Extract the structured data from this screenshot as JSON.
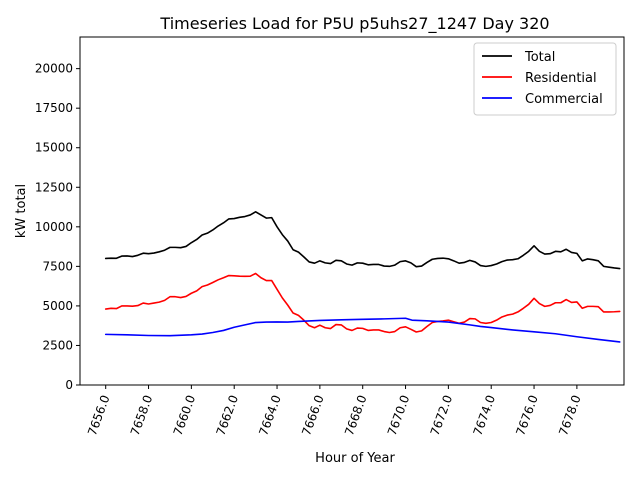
{
  "chart_data": {
    "type": "line",
    "title": "Timeseries Load for P5U p5uhs27_1247  Day 320",
    "xlabel": "Hour of Year",
    "ylabel": "kW total",
    "xlim": [
      7654.8,
      7680.2
    ],
    "ylim": [
      0,
      22000
    ],
    "x_ticks": [
      7656,
      7658,
      7660,
      7662,
      7664,
      7666,
      7668,
      7670,
      7672,
      7674,
      7676,
      7678
    ],
    "x_tick_labels": [
      "7656.0",
      "7658.0",
      "7660.0",
      "7662.0",
      "7664.0",
      "7666.0",
      "7668.0",
      "7670.0",
      "7672.0",
      "7674.0",
      "7676.0",
      "7678.0"
    ],
    "y_ticks": [
      0,
      2500,
      5000,
      7500,
      10000,
      12500,
      15000,
      17500,
      20000
    ],
    "y_tick_labels": [
      "0",
      "2500",
      "5000",
      "7500",
      "10000",
      "12500",
      "15000",
      "17500",
      "20000"
    ],
    "legend_position": "top-right",
    "grid": false,
    "series": [
      {
        "name": "Total",
        "color": "#000000",
        "points": [
          [
            7656.0,
            8000
          ],
          [
            7656.25,
            8020
          ],
          [
            7656.5,
            8010
          ],
          [
            7656.75,
            8150
          ],
          [
            7657.0,
            8160
          ],
          [
            7657.25,
            8120
          ],
          [
            7657.5,
            8200
          ],
          [
            7657.75,
            8330
          ],
          [
            7658.0,
            8300
          ],
          [
            7658.25,
            8340
          ],
          [
            7658.5,
            8420
          ],
          [
            7658.75,
            8520
          ],
          [
            7659.0,
            8700
          ],
          [
            7659.25,
            8700
          ],
          [
            7659.5,
            8680
          ],
          [
            7659.75,
            8760
          ],
          [
            7660.0,
            9000
          ],
          [
            7660.25,
            9200
          ],
          [
            7660.5,
            9480
          ],
          [
            7660.75,
            9600
          ],
          [
            7661.0,
            9800
          ],
          [
            7661.25,
            10050
          ],
          [
            7661.5,
            10250
          ],
          [
            7661.75,
            10500
          ],
          [
            7662.0,
            10520
          ],
          [
            7662.25,
            10600
          ],
          [
            7662.5,
            10650
          ],
          [
            7662.75,
            10750
          ],
          [
            7663.0,
            10950
          ],
          [
            7663.25,
            10750
          ],
          [
            7663.5,
            10550
          ],
          [
            7663.75,
            10580
          ],
          [
            7664.0,
            10000
          ],
          [
            7664.25,
            9500
          ],
          [
            7664.5,
            9100
          ],
          [
            7664.75,
            8550
          ],
          [
            7665.0,
            8400
          ],
          [
            7665.25,
            8100
          ],
          [
            7665.5,
            7780
          ],
          [
            7665.75,
            7700
          ],
          [
            7666.0,
            7850
          ],
          [
            7666.25,
            7720
          ],
          [
            7666.5,
            7680
          ],
          [
            7666.75,
            7880
          ],
          [
            7667.0,
            7850
          ],
          [
            7667.25,
            7650
          ],
          [
            7667.5,
            7580
          ],
          [
            7667.75,
            7720
          ],
          [
            7668.0,
            7700
          ],
          [
            7668.25,
            7600
          ],
          [
            7668.5,
            7620
          ],
          [
            7668.75,
            7620
          ],
          [
            7669.0,
            7520
          ],
          [
            7669.25,
            7500
          ],
          [
            7669.5,
            7580
          ],
          [
            7669.75,
            7800
          ],
          [
            7670.0,
            7850
          ],
          [
            7670.25,
            7720
          ],
          [
            7670.5,
            7480
          ],
          [
            7670.75,
            7520
          ],
          [
            7671.0,
            7750
          ],
          [
            7671.25,
            7950
          ],
          [
            7671.5,
            8000
          ],
          [
            7671.75,
            8020
          ],
          [
            7672.0,
            7980
          ],
          [
            7672.25,
            7850
          ],
          [
            7672.5,
            7700
          ],
          [
            7672.75,
            7750
          ],
          [
            7673.0,
            7880
          ],
          [
            7673.25,
            7780
          ],
          [
            7673.5,
            7550
          ],
          [
            7673.75,
            7500
          ],
          [
            7674.0,
            7550
          ],
          [
            7674.25,
            7650
          ],
          [
            7674.5,
            7800
          ],
          [
            7674.75,
            7900
          ],
          [
            7675.0,
            7920
          ],
          [
            7675.25,
            7980
          ],
          [
            7675.5,
            8200
          ],
          [
            7675.75,
            8450
          ],
          [
            7676.0,
            8800
          ],
          [
            7676.25,
            8450
          ],
          [
            7676.5,
            8280
          ],
          [
            7676.75,
            8300
          ],
          [
            7677.0,
            8450
          ],
          [
            7677.25,
            8420
          ],
          [
            7677.5,
            8580
          ],
          [
            7677.75,
            8380
          ],
          [
            7678.0,
            8320
          ],
          [
            7678.25,
            7850
          ],
          [
            7678.5,
            7970
          ],
          [
            7678.75,
            7920
          ],
          [
            7679.0,
            7850
          ],
          [
            7679.25,
            7500
          ],
          [
            7679.5,
            7450
          ],
          [
            7679.75,
            7400
          ],
          [
            7680.0,
            7360
          ]
        ]
      },
      {
        "name": "Residential",
        "color": "#ff0000",
        "points": [
          [
            7656.0,
            4800
          ],
          [
            7656.25,
            4850
          ],
          [
            7656.5,
            4830
          ],
          [
            7656.75,
            5000
          ],
          [
            7657.0,
            5000
          ],
          [
            7657.25,
            4980
          ],
          [
            7657.5,
            5020
          ],
          [
            7657.75,
            5180
          ],
          [
            7658.0,
            5120
          ],
          [
            7658.25,
            5180
          ],
          [
            7658.5,
            5240
          ],
          [
            7658.75,
            5350
          ],
          [
            7659.0,
            5580
          ],
          [
            7659.25,
            5580
          ],
          [
            7659.5,
            5530
          ],
          [
            7659.75,
            5600
          ],
          [
            7660.0,
            5800
          ],
          [
            7660.25,
            5950
          ],
          [
            7660.5,
            6220
          ],
          [
            7660.75,
            6320
          ],
          [
            7661.0,
            6480
          ],
          [
            7661.25,
            6650
          ],
          [
            7661.5,
            6780
          ],
          [
            7661.75,
            6920
          ],
          [
            7662.0,
            6900
          ],
          [
            7662.25,
            6880
          ],
          [
            7662.5,
            6870
          ],
          [
            7662.75,
            6880
          ],
          [
            7663.0,
            7050
          ],
          [
            7663.25,
            6780
          ],
          [
            7663.5,
            6600
          ],
          [
            7663.75,
            6600
          ],
          [
            7664.0,
            6050
          ],
          [
            7664.25,
            5500
          ],
          [
            7664.5,
            5050
          ],
          [
            7664.75,
            4550
          ],
          [
            7665.0,
            4400
          ],
          [
            7665.25,
            4100
          ],
          [
            7665.5,
            3750
          ],
          [
            7665.75,
            3620
          ],
          [
            7666.0,
            3780
          ],
          [
            7666.25,
            3620
          ],
          [
            7666.5,
            3570
          ],
          [
            7666.75,
            3820
          ],
          [
            7667.0,
            3800
          ],
          [
            7667.25,
            3550
          ],
          [
            7667.5,
            3450
          ],
          [
            7667.75,
            3600
          ],
          [
            7668.0,
            3580
          ],
          [
            7668.25,
            3450
          ],
          [
            7668.5,
            3480
          ],
          [
            7668.75,
            3480
          ],
          [
            7669.0,
            3380
          ],
          [
            7669.25,
            3320
          ],
          [
            7669.5,
            3380
          ],
          [
            7669.75,
            3620
          ],
          [
            7670.0,
            3680
          ],
          [
            7670.25,
            3520
          ],
          [
            7670.5,
            3350
          ],
          [
            7670.75,
            3420
          ],
          [
            7671.0,
            3700
          ],
          [
            7671.25,
            3950
          ],
          [
            7671.5,
            4020
          ],
          [
            7671.75,
            4050
          ],
          [
            7672.0,
            4100
          ],
          [
            7672.25,
            4000
          ],
          [
            7672.5,
            3900
          ],
          [
            7672.75,
            3980
          ],
          [
            7673.0,
            4200
          ],
          [
            7673.25,
            4180
          ],
          [
            7673.5,
            3950
          ],
          [
            7673.75,
            3900
          ],
          [
            7674.0,
            3950
          ],
          [
            7674.25,
            4100
          ],
          [
            7674.5,
            4300
          ],
          [
            7674.75,
            4420
          ],
          [
            7675.0,
            4480
          ],
          [
            7675.25,
            4620
          ],
          [
            7675.5,
            4850
          ],
          [
            7675.75,
            5100
          ],
          [
            7676.0,
            5480
          ],
          [
            7676.25,
            5150
          ],
          [
            7676.5,
            4970
          ],
          [
            7676.75,
            5030
          ],
          [
            7677.0,
            5200
          ],
          [
            7677.25,
            5200
          ],
          [
            7677.5,
            5400
          ],
          [
            7677.75,
            5220
          ],
          [
            7678.0,
            5250
          ],
          [
            7678.25,
            4850
          ],
          [
            7678.5,
            4970
          ],
          [
            7678.75,
            4970
          ],
          [
            7679.0,
            4950
          ],
          [
            7679.25,
            4620
          ],
          [
            7679.5,
            4620
          ],
          [
            7679.75,
            4630
          ],
          [
            7680.0,
            4650
          ]
        ]
      },
      {
        "name": "Commercial",
        "color": "#0000ff",
        "points": [
          [
            7656.0,
            3200
          ],
          [
            7657.0,
            3170
          ],
          [
            7658.0,
            3130
          ],
          [
            7659.0,
            3120
          ],
          [
            7660.0,
            3170
          ],
          [
            7660.5,
            3220
          ],
          [
            7661.0,
            3320
          ],
          [
            7661.5,
            3450
          ],
          [
            7662.0,
            3650
          ],
          [
            7662.5,
            3800
          ],
          [
            7663.0,
            3950
          ],
          [
            7663.5,
            3980
          ],
          [
            7664.0,
            3990
          ],
          [
            7664.5,
            3980
          ],
          [
            7665.0,
            4020
          ],
          [
            7666.0,
            4080
          ],
          [
            7667.0,
            4120
          ],
          [
            7668.0,
            4150
          ],
          [
            7669.0,
            4180
          ],
          [
            7670.0,
            4220
          ],
          [
            7670.3,
            4100
          ],
          [
            7671.0,
            4060
          ],
          [
            7672.0,
            3980
          ],
          [
            7673.0,
            3800
          ],
          [
            7673.5,
            3700
          ],
          [
            7674.0,
            3630
          ],
          [
            7675.0,
            3480
          ],
          [
            7676.0,
            3360
          ],
          [
            7677.0,
            3240
          ],
          [
            7678.0,
            3050
          ],
          [
            7679.0,
            2880
          ],
          [
            7680.0,
            2720
          ]
        ]
      }
    ]
  }
}
